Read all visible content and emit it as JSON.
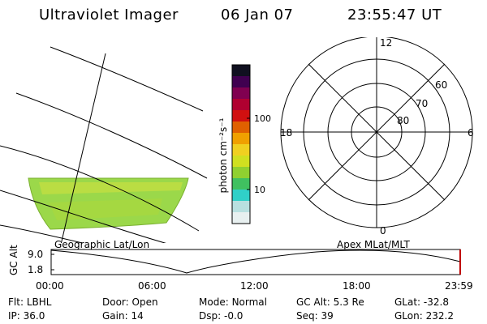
{
  "header": {
    "instrument": "Ultraviolet Imager",
    "date": "06 Jan 07",
    "time": "23:55:47 UT"
  },
  "colorbar": {
    "unit_label": "photon cm⁻²s⁻¹",
    "tick_labels": [
      "100",
      "10"
    ],
    "colors": [
      "#e8f0f0",
      "#b8e0e0",
      "#30d0c8",
      "#40c060",
      "#90d030",
      "#d0e020",
      "#f0d020",
      "#f0a000",
      "#e06000",
      "#d01010",
      "#b00030",
      "#800050",
      "#400050",
      "#101020"
    ]
  },
  "geographic_panel": {
    "label": "Geographic Lat/Lon",
    "fill_color": "#9bd84a"
  },
  "polar_panel": {
    "label": "Apex MLat/MLT",
    "mlt_labels": {
      "top": "12",
      "left": "18",
      "right": "6",
      "bottom": "0"
    },
    "mlat_labels": [
      "60",
      "70",
      "80"
    ]
  },
  "timeline": {
    "axis_label": "GC Alt",
    "y_ticks": [
      "9.0",
      "1.8"
    ],
    "x_ticks": [
      "00:00",
      "06:00",
      "12:00",
      "18:00",
      "23:59"
    ]
  },
  "status": {
    "row1": [
      {
        "key": "Flt:",
        "value": "LBHL"
      },
      {
        "key": "Door:",
        "value": "Open"
      },
      {
        "key": "Mode:",
        "value": "Normal"
      },
      {
        "key": "GC Alt:",
        "value": "5.3 Re"
      },
      {
        "key": "GLat:",
        "value": "-32.8"
      }
    ],
    "row2": [
      {
        "key": "IP:",
        "value": "36.0"
      },
      {
        "key": "Gain:",
        "value": "14"
      },
      {
        "key": "Dsp:",
        "value": "-0.0"
      },
      {
        "key": "Seq:",
        "value": "39"
      },
      {
        "key": "GLon:",
        "value": "232.2"
      }
    ]
  }
}
